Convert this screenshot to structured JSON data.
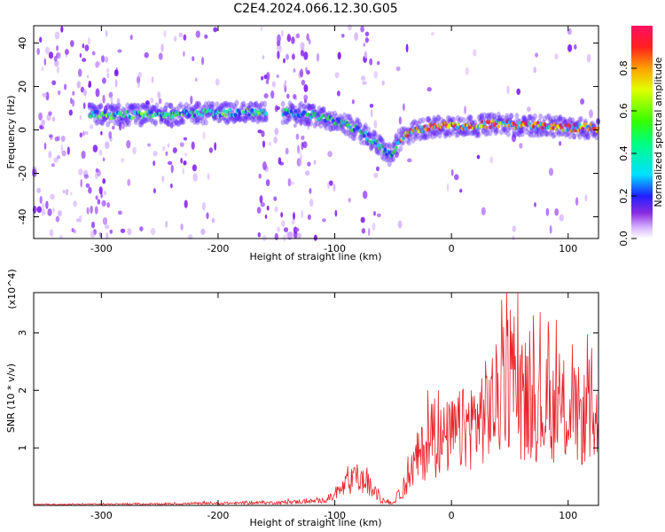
{
  "chart_data": [
    {
      "type": "heatmap",
      "title": "C2E4.2024.066.12.30.G05",
      "xlabel": "Height of straight line (km)",
      "ylabel": "Frequency (Hz)",
      "xlim": [
        -358,
        126
      ],
      "ylim": [
        -50,
        48
      ],
      "xticks": [
        -300,
        -200,
        -100,
        0,
        100
      ],
      "yticks": [
        -40,
        -20,
        0,
        20,
        40
      ],
      "colorbar": {
        "label": "Normalized spectral amplitude",
        "range": [
          0,
          1
        ],
        "ticks": [
          0.0,
          0.2,
          0.4,
          0.6,
          0.8
        ]
      },
      "ridge": {
        "x": [
          -310,
          -250,
          -200,
          -160,
          -140,
          -120,
          -100,
          -80,
          -60,
          -52,
          -45,
          -35,
          -20,
          0,
          20,
          40,
          60,
          80,
          100,
          126
        ],
        "y": [
          7,
          7,
          8,
          8,
          8,
          7,
          4,
          0,
          -8,
          -12,
          -5,
          -1,
          1,
          2,
          2,
          3,
          2,
          2,
          1,
          1
        ]
      }
    },
    {
      "type": "line",
      "xlabel": "Height of straight line (km)",
      "ylabel": "SNR (10 * v/v)",
      "y_multiplier": "(x10^4)",
      "xlim": [
        -358,
        126
      ],
      "ylim": [
        0,
        3.7
      ],
      "xticks": [
        -300,
        -200,
        -100,
        0,
        100
      ],
      "yticks": [
        1,
        2,
        3
      ],
      "color": "#e8232a",
      "envelope": {
        "x": [
          -358,
          -250,
          -150,
          -110,
          -100,
          -90,
          -80,
          -70,
          -60,
          -50,
          -40,
          -30,
          -20,
          0,
          20,
          40,
          50,
          60,
          80,
          100,
          126
        ],
        "y": [
          0.02,
          0.03,
          0.06,
          0.1,
          0.2,
          0.45,
          0.6,
          0.4,
          0.1,
          0.05,
          0.4,
          1.0,
          1.3,
          1.5,
          1.8,
          2.3,
          2.8,
          2.2,
          2.1,
          2.0,
          1.8
        ]
      }
    }
  ]
}
